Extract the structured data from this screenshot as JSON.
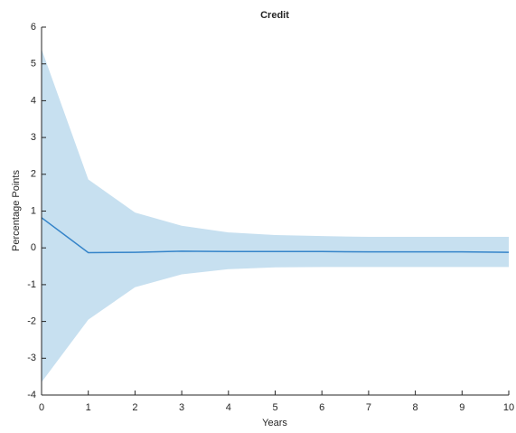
{
  "chart_data": {
    "type": "line",
    "title": "Credit",
    "xlabel": "Years",
    "ylabel": "Percentage Points",
    "x": [
      0,
      1,
      2,
      3,
      4,
      5,
      6,
      7,
      8,
      9,
      10
    ],
    "values": [
      0.82,
      -0.13,
      -0.12,
      -0.09,
      -0.1,
      -0.1,
      -0.1,
      -0.11,
      -0.11,
      -0.11,
      -0.12
    ],
    "upper": [
      5.4,
      1.86,
      0.96,
      0.6,
      0.42,
      0.35,
      0.32,
      0.3,
      0.3,
      0.3,
      0.3
    ],
    "lower": [
      -3.65,
      -1.95,
      -1.07,
      -0.72,
      -0.58,
      -0.53,
      -0.52,
      -0.52,
      -0.52,
      -0.52,
      -0.52
    ],
    "color": "#3584c9",
    "band_color": "#c7e0f0",
    "xlim": [
      0,
      10
    ],
    "xticks": [
      0,
      1,
      2,
      3,
      4,
      5,
      6,
      7,
      8,
      9,
      10
    ],
    "ylim": [
      -4,
      6
    ],
    "yticks": [
      -4,
      -3,
      -2,
      -1,
      0,
      1,
      2,
      3,
      4,
      5,
      6
    ]
  }
}
